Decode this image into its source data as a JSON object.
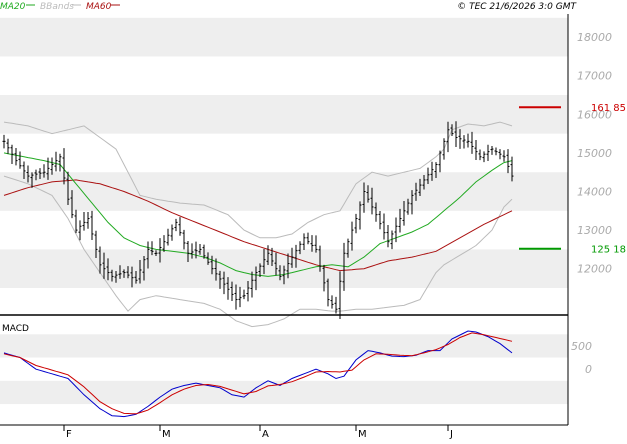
{
  "legend": {
    "items": [
      {
        "label": "MA20",
        "color": "#22aa22"
      },
      {
        "label": "BBands",
        "color": "#bbbbbb"
      },
      {
        "label": "MA60",
        "color": "#aa1111"
      }
    ]
  },
  "copyright": "© TEC 21/6/2026 3:0 GMT",
  "colors": {
    "grid_band": "#eeeeee",
    "price": "#000000",
    "ma20": "#22aa22",
    "ma60": "#aa1111",
    "bbands": "#bbbbbb",
    "macd": "#0000cc",
    "signal": "#cc0000",
    "axis_text": "#aaaaaa",
    "frame": "#000000"
  },
  "chart_data": [
    {
      "type": "line",
      "title": "",
      "note": "Daily OHLC bar chart with MA20, MA60 and Bollinger Bands",
      "y_ticks": [
        12000,
        13000,
        14000,
        15000,
        16000,
        17000,
        18000
      ],
      "ylim": [
        10800,
        18600
      ],
      "x_ticks": [
        {
          "label": "F",
          "index": 15
        },
        {
          "label": "M",
          "index": 39
        },
        {
          "label": "A",
          "index": 64
        },
        {
          "label": "M",
          "index": 88
        },
        {
          "label": "J",
          "index": 111
        }
      ],
      "n_bars": 128,
      "levels": [
        {
          "label": "161 85",
          "value": 16185,
          "color": "#cc0000"
        },
        {
          "label": "125 18",
          "value": 12518,
          "color": "#009900"
        }
      ],
      "price_series": {
        "name": "Price",
        "close_anchors": [
          [
            0,
            15300
          ],
          [
            3,
            14800
          ],
          [
            6,
            14400
          ],
          [
            10,
            14500
          ],
          [
            14,
            14900
          ],
          [
            16,
            13800
          ],
          [
            18,
            13000
          ],
          [
            21,
            13300
          ],
          [
            24,
            12100
          ],
          [
            27,
            11800
          ],
          [
            30,
            11900
          ],
          [
            33,
            11700
          ],
          [
            36,
            12500
          ],
          [
            38,
            12400
          ],
          [
            40,
            12700
          ],
          [
            43,
            13200
          ],
          [
            46,
            12400
          ],
          [
            49,
            12500
          ],
          [
            52,
            12000
          ],
          [
            55,
            11600
          ],
          [
            58,
            11200
          ],
          [
            60,
            11300
          ],
          [
            63,
            11900
          ],
          [
            66,
            12400
          ],
          [
            69,
            11800
          ],
          [
            72,
            12300
          ],
          [
            75,
            12800
          ],
          [
            78,
            12500
          ],
          [
            81,
            11200
          ],
          [
            83,
            10950
          ],
          [
            85,
            12400
          ],
          [
            88,
            13300
          ],
          [
            90,
            14000
          ],
          [
            93,
            13400
          ],
          [
            96,
            12700
          ],
          [
            99,
            13300
          ],
          [
            102,
            13900
          ],
          [
            105,
            14300
          ],
          [
            108,
            14700
          ],
          [
            111,
            15600
          ],
          [
            113,
            15400
          ],
          [
            116,
            15300
          ],
          [
            119,
            14900
          ],
          [
            122,
            15100
          ],
          [
            125,
            14900
          ],
          [
            127,
            14400
          ]
        ]
      },
      "ma20": {
        "name": "MA20",
        "anchors": [
          [
            0,
            15000
          ],
          [
            5,
            14900
          ],
          [
            10,
            14800
          ],
          [
            14,
            14700
          ],
          [
            18,
            14200
          ],
          [
            22,
            13700
          ],
          [
            26,
            13200
          ],
          [
            30,
            12800
          ],
          [
            34,
            12600
          ],
          [
            38,
            12500
          ],
          [
            42,
            12450
          ],
          [
            46,
            12400
          ],
          [
            50,
            12300
          ],
          [
            54,
            12150
          ],
          [
            58,
            11950
          ],
          [
            62,
            11850
          ],
          [
            66,
            11800
          ],
          [
            70,
            11850
          ],
          [
            74,
            11950
          ],
          [
            78,
            12050
          ],
          [
            82,
            12100
          ],
          [
            86,
            12050
          ],
          [
            90,
            12300
          ],
          [
            94,
            12650
          ],
          [
            98,
            12800
          ],
          [
            102,
            12950
          ],
          [
            106,
            13150
          ],
          [
            110,
            13500
          ],
          [
            114,
            13850
          ],
          [
            118,
            14250
          ],
          [
            122,
            14550
          ],
          [
            125,
            14750
          ],
          [
            127,
            14800
          ]
        ]
      },
      "ma60": {
        "name": "MA60",
        "anchors": [
          [
            0,
            13900
          ],
          [
            6,
            14100
          ],
          [
            12,
            14250
          ],
          [
            18,
            14300
          ],
          [
            24,
            14200
          ],
          [
            30,
            14000
          ],
          [
            36,
            13750
          ],
          [
            42,
            13450
          ],
          [
            48,
            13200
          ],
          [
            54,
            12950
          ],
          [
            60,
            12700
          ],
          [
            66,
            12500
          ],
          [
            72,
            12300
          ],
          [
            78,
            12100
          ],
          [
            84,
            11950
          ],
          [
            90,
            12000
          ],
          [
            96,
            12200
          ],
          [
            102,
            12300
          ],
          [
            108,
            12450
          ],
          [
            114,
            12800
          ],
          [
            120,
            13150
          ],
          [
            125,
            13400
          ],
          [
            127,
            13500
          ]
        ]
      },
      "bbands_upper": {
        "name": "BBands upper",
        "anchors": [
          [
            0,
            15800
          ],
          [
            6,
            15700
          ],
          [
            12,
            15500
          ],
          [
            16,
            15600
          ],
          [
            20,
            15700
          ],
          [
            24,
            15400
          ],
          [
            28,
            15100
          ],
          [
            31,
            14500
          ],
          [
            34,
            13900
          ],
          [
            38,
            13800
          ],
          [
            44,
            13700
          ],
          [
            50,
            13650
          ],
          [
            56,
            13400
          ],
          [
            60,
            13000
          ],
          [
            64,
            12800
          ],
          [
            68,
            12800
          ],
          [
            72,
            12900
          ],
          [
            76,
            13200
          ],
          [
            80,
            13400
          ],
          [
            84,
            13500
          ],
          [
            88,
            14200
          ],
          [
            92,
            14500
          ],
          [
            96,
            14400
          ],
          [
            100,
            14500
          ],
          [
            104,
            14600
          ],
          [
            108,
            14900
          ],
          [
            110,
            15100
          ],
          [
            112,
            15600
          ],
          [
            116,
            15750
          ],
          [
            120,
            15700
          ],
          [
            124,
            15800
          ],
          [
            127,
            15700
          ]
        ]
      },
      "bbands_lower": {
        "name": "BBands lower",
        "anchors": [
          [
            0,
            14400
          ],
          [
            6,
            14200
          ],
          [
            12,
            13900
          ],
          [
            16,
            13300
          ],
          [
            20,
            12500
          ],
          [
            24,
            11900
          ],
          [
            28,
            11300
          ],
          [
            31,
            10900
          ],
          [
            34,
            11200
          ],
          [
            38,
            11300
          ],
          [
            44,
            11200
          ],
          [
            50,
            11100
          ],
          [
            54,
            10950
          ],
          [
            58,
            10650
          ],
          [
            62,
            10500
          ],
          [
            66,
            10550
          ],
          [
            70,
            10700
          ],
          [
            74,
            10950
          ],
          [
            78,
            10950
          ],
          [
            82,
            10900
          ],
          [
            84,
            10900
          ],
          [
            88,
            10950
          ],
          [
            92,
            10950
          ],
          [
            96,
            11000
          ],
          [
            100,
            11050
          ],
          [
            104,
            11200
          ],
          [
            108,
            11900
          ],
          [
            110,
            12100
          ],
          [
            114,
            12350
          ],
          [
            118,
            12600
          ],
          [
            122,
            13000
          ],
          [
            125,
            13600
          ],
          [
            127,
            13800
          ]
        ]
      }
    },
    {
      "type": "line",
      "title": "MACD",
      "y_ticks": [
        0,
        500
      ],
      "ylim": [
        -1200,
        1100
      ],
      "series": [
        {
          "name": "",
          "color": "#0000cc",
          "anchors": [
            [
              0,
              350
            ],
            [
              4,
              250
            ],
            [
              8,
              0
            ],
            [
              12,
              -100
            ],
            [
              16,
              -200
            ],
            [
              20,
              -550
            ],
            [
              24,
              -850
            ],
            [
              27,
              -1000
            ],
            [
              30,
              -1020
            ],
            [
              33,
              -970
            ],
            [
              36,
              -800
            ],
            [
              39,
              -600
            ],
            [
              42,
              -430
            ],
            [
              45,
              -350
            ],
            [
              48,
              -300
            ],
            [
              51,
              -350
            ],
            [
              54,
              -400
            ],
            [
              57,
              -550
            ],
            [
              60,
              -600
            ],
            [
              63,
              -400
            ],
            [
              66,
              -250
            ],
            [
              69,
              -350
            ],
            [
              72,
              -200
            ],
            [
              75,
              -100
            ],
            [
              78,
              0
            ],
            [
              81,
              -100
            ],
            [
              83,
              -200
            ],
            [
              85,
              -150
            ],
            [
              88,
              200
            ],
            [
              91,
              400
            ],
            [
              94,
              350
            ],
            [
              97,
              280
            ],
            [
              100,
              270
            ],
            [
              103,
              300
            ],
            [
              106,
              400
            ],
            [
              109,
              400
            ],
            [
              112,
              650
            ],
            [
              116,
              820
            ],
            [
              118,
              800
            ],
            [
              121,
              700
            ],
            [
              124,
              550
            ],
            [
              127,
              350
            ]
          ]
        },
        {
          "name": "",
          "color": "#cc0000",
          "anchors": [
            [
              0,
              330
            ],
            [
              4,
              250
            ],
            [
              8,
              80
            ],
            [
              12,
              -20
            ],
            [
              16,
              -120
            ],
            [
              20,
              -380
            ],
            [
              24,
              -700
            ],
            [
              27,
              -850
            ],
            [
              30,
              -950
            ],
            [
              33,
              -960
            ],
            [
              36,
              -880
            ],
            [
              39,
              -720
            ],
            [
              42,
              -550
            ],
            [
              45,
              -430
            ],
            [
              48,
              -350
            ],
            [
              51,
              -330
            ],
            [
              54,
              -370
            ],
            [
              57,
              -450
            ],
            [
              60,
              -530
            ],
            [
              63,
              -480
            ],
            [
              66,
              -360
            ],
            [
              69,
              -330
            ],
            [
              72,
              -270
            ],
            [
              75,
              -170
            ],
            [
              78,
              -60
            ],
            [
              81,
              -50
            ],
            [
              84,
              -60
            ],
            [
              87,
              -20
            ],
            [
              90,
              200
            ],
            [
              93,
              330
            ],
            [
              96,
              320
            ],
            [
              99,
              300
            ],
            [
              102,
              290
            ],
            [
              105,
              350
            ],
            [
              108,
              420
            ],
            [
              111,
              530
            ],
            [
              114,
              680
            ],
            [
              117,
              780
            ],
            [
              120,
              740
            ],
            [
              124,
              660
            ],
            [
              127,
              600
            ]
          ]
        }
      ]
    }
  ]
}
